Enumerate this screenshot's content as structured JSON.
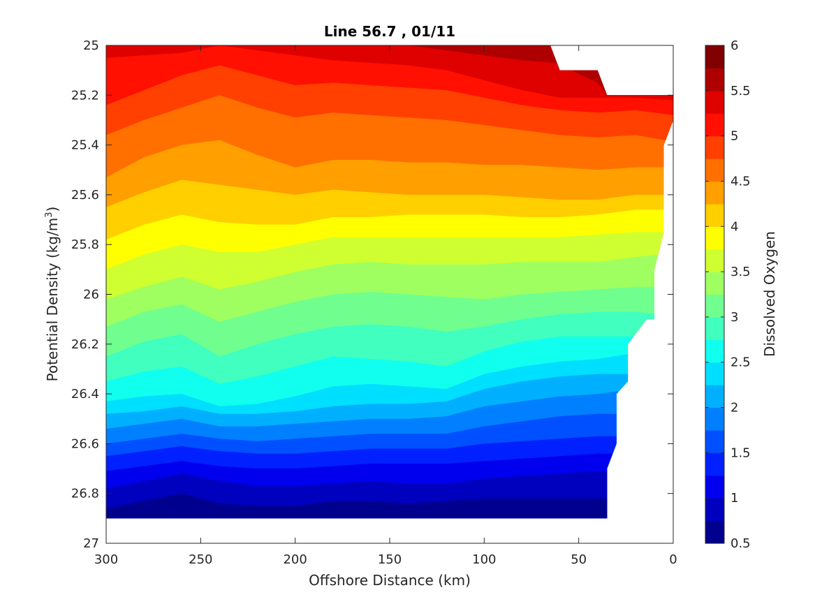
{
  "chart_data": {
    "type": "contour",
    "title": "Line 56.7 , 01/11",
    "xlabel": "Offshore Distance (km)",
    "ylabel": "Potential Density (kg/m",
    "ylabel_sup": "3",
    "ylabel_tail": ")",
    "colorbar_label": "Dissolved Oxygen",
    "xlim": [
      300,
      0
    ],
    "ylim": [
      25,
      27
    ],
    "y_reversed": true,
    "x_reversed": true,
    "x_ticks": [
      300,
      250,
      200,
      150,
      100,
      50,
      0
    ],
    "x_tick_labels": [
      "300",
      "250",
      "200",
      "150",
      "100",
      "50",
      "0"
    ],
    "y_ticks": [
      25,
      25.2,
      25.4,
      25.6,
      25.8,
      26,
      26.2,
      26.4,
      26.6,
      26.8,
      27
    ],
    "y_tick_labels": [
      "25",
      "25.2",
      "25.4",
      "25.6",
      "25.8",
      "26",
      "26.2",
      "26.4",
      "26.6",
      "26.8",
      "27"
    ],
    "colorbar": {
      "range": [
        0.5,
        6
      ],
      "ticks": [
        0.5,
        1,
        1.5,
        2,
        2.5,
        3,
        3.5,
        4,
        4.5,
        5,
        5.5,
        6
      ],
      "tick_labels": [
        "0.5",
        "1",
        "1.5",
        "2",
        "2.5",
        "3",
        "3.5",
        "4",
        "4.5",
        "5",
        "5.5",
        "6"
      ],
      "levels": [
        0.5,
        0.75,
        1,
        1.25,
        1.5,
        1.75,
        2,
        2.25,
        2.5,
        2.75,
        3,
        3.25,
        3.5,
        3.75,
        4,
        4.25,
        4.5,
        4.75,
        5,
        5.25,
        5.5,
        5.75,
        6
      ],
      "colormap": "jet",
      "colors": [
        "#00008f",
        "#0000bf",
        "#0000ef",
        "#0020ff",
        "#0050ff",
        "#0080ff",
        "#00b0ff",
        "#00dfff",
        "#10ffef",
        "#40ffbf",
        "#70ff8f",
        "#9fff60",
        "#cfff30",
        "#ffff00",
        "#ffcf00",
        "#ff9f00",
        "#ff7000",
        "#ff4000",
        "#ff1000",
        "#df0000",
        "#af0000",
        "#800000"
      ]
    },
    "data_extent": {
      "density_bottom": 26.9,
      "boundary_km_by_density": [
        [
          25.0,
          65
        ],
        [
          25.1,
          60
        ],
        [
          25.1,
          40
        ],
        [
          25.2,
          35
        ],
        [
          25.2,
          0
        ],
        [
          25.3,
          0
        ],
        [
          25.4,
          5
        ],
        [
          25.75,
          5
        ],
        [
          25.9,
          10
        ],
        [
          26.1,
          10
        ],
        [
          26.1,
          14
        ],
        [
          26.2,
          24
        ],
        [
          26.35,
          24
        ],
        [
          26.4,
          30
        ],
        [
          26.6,
          30
        ],
        [
          26.7,
          35
        ],
        [
          26.9,
          35
        ]
      ]
    },
    "contours": [
      {
        "level": 5.75,
        "x": [
          300,
          280,
          240,
          200,
          150,
          100,
          70,
          63
        ],
        "y": [
          25.0,
          24.99,
          24.99,
          24.99,
          24.99,
          24.99,
          24.99,
          25.0
        ]
      },
      {
        "level": 5.5,
        "x": [
          300,
          280,
          240,
          200,
          160,
          140,
          120,
          100,
          80,
          62,
          40,
          35
        ],
        "y": [
          24.96,
          24.96,
          24.96,
          24.97,
          24.99,
          25.0,
          25.02,
          25.04,
          25.06,
          25.07,
          25.15,
          25.2
        ]
      },
      {
        "level": 5.25,
        "x": [
          300,
          280,
          260,
          240,
          220,
          200,
          180,
          160,
          140,
          120,
          100,
          80,
          60,
          40,
          20,
          0
        ],
        "y": [
          25.05,
          25.04,
          25.03,
          25.0,
          25.02,
          25.04,
          25.06,
          25.07,
          25.08,
          25.1,
          25.14,
          25.18,
          25.21,
          25.21,
          25.21,
          25.22
        ]
      },
      {
        "level": 5.0,
        "x": [
          300,
          280,
          260,
          240,
          220,
          200,
          180,
          160,
          140,
          120,
          100,
          80,
          60,
          40,
          20,
          0
        ],
        "y": [
          25.24,
          25.18,
          25.12,
          25.08,
          25.12,
          25.16,
          25.15,
          25.16,
          25.17,
          25.18,
          25.21,
          25.24,
          25.26,
          25.27,
          25.26,
          25.28
        ]
      },
      {
        "level": 4.75,
        "x": [
          300,
          280,
          260,
          240,
          220,
          200,
          180,
          160,
          140,
          120,
          100,
          80,
          60,
          40,
          20,
          5
        ],
        "y": [
          25.36,
          25.3,
          25.25,
          25.2,
          25.25,
          25.29,
          25.27,
          25.28,
          25.29,
          25.3,
          25.32,
          25.34,
          25.36,
          25.37,
          25.36,
          25.38
        ]
      },
      {
        "level": 4.5,
        "x": [
          300,
          280,
          260,
          240,
          220,
          200,
          180,
          160,
          140,
          120,
          100,
          80,
          60,
          40,
          20,
          5
        ],
        "y": [
          25.53,
          25.45,
          25.4,
          25.38,
          25.44,
          25.49,
          25.46,
          25.46,
          25.47,
          25.47,
          25.48,
          25.48,
          25.49,
          25.5,
          25.49,
          25.49
        ]
      },
      {
        "level": 4.25,
        "x": [
          300,
          280,
          260,
          240,
          220,
          200,
          180,
          160,
          140,
          120,
          100,
          80,
          60,
          40,
          20,
          5
        ],
        "y": [
          25.65,
          25.59,
          25.54,
          25.56,
          25.58,
          25.6,
          25.58,
          25.59,
          25.6,
          25.6,
          25.6,
          25.61,
          25.62,
          25.62,
          25.6,
          25.6
        ]
      },
      {
        "level": 4.0,
        "x": [
          300,
          280,
          260,
          240,
          220,
          200,
          180,
          160,
          140,
          120,
          100,
          80,
          60,
          40,
          20,
          5
        ],
        "y": [
          25.78,
          25.72,
          25.68,
          25.71,
          25.72,
          25.72,
          25.69,
          25.69,
          25.68,
          25.68,
          25.68,
          25.69,
          25.69,
          25.68,
          25.66,
          25.66
        ]
      },
      {
        "level": 3.75,
        "x": [
          300,
          280,
          260,
          240,
          220,
          200,
          180,
          160,
          140,
          120,
          100,
          80,
          60,
          40,
          20,
          5
        ],
        "y": [
          25.9,
          25.84,
          25.8,
          25.83,
          25.83,
          25.8,
          25.77,
          25.77,
          25.77,
          25.77,
          25.77,
          25.77,
          25.77,
          25.76,
          25.75,
          25.75
        ]
      },
      {
        "level": 3.5,
        "x": [
          300,
          280,
          260,
          240,
          220,
          200,
          180,
          160,
          140,
          120,
          100,
          80,
          60,
          40,
          20,
          7
        ],
        "y": [
          26.02,
          25.97,
          25.93,
          25.98,
          25.95,
          25.91,
          25.88,
          25.87,
          25.88,
          25.88,
          25.88,
          25.87,
          25.87,
          25.87,
          25.85,
          25.84
        ]
      },
      {
        "level": 3.25,
        "x": [
          300,
          280,
          260,
          240,
          220,
          200,
          180,
          160,
          140,
          120,
          100,
          80,
          60,
          40,
          20,
          10
        ],
        "y": [
          26.13,
          26.07,
          26.04,
          26.11,
          26.07,
          26.03,
          26.0,
          25.99,
          26.0,
          26.01,
          26.02,
          26.0,
          25.99,
          25.98,
          25.97,
          25.97
        ]
      },
      {
        "level": 3.0,
        "x": [
          300,
          280,
          260,
          240,
          220,
          200,
          180,
          160,
          140,
          120,
          100,
          80,
          60,
          40,
          20,
          10
        ],
        "y": [
          26.25,
          26.19,
          26.16,
          26.25,
          26.2,
          26.16,
          26.13,
          26.12,
          26.13,
          26.15,
          26.13,
          26.1,
          26.08,
          26.07,
          26.07,
          26.08
        ]
      },
      {
        "level": 2.75,
        "x": [
          300,
          280,
          260,
          240,
          220,
          200,
          180,
          160,
          140,
          120,
          100,
          80,
          60,
          40,
          22
        ],
        "y": [
          26.35,
          26.31,
          26.29,
          26.36,
          26.33,
          26.29,
          26.25,
          26.26,
          26.27,
          26.29,
          26.23,
          26.19,
          26.17,
          26.17,
          26.17
        ]
      },
      {
        "level": 2.5,
        "x": [
          300,
          280,
          260,
          240,
          220,
          200,
          180,
          160,
          140,
          120,
          100,
          80,
          60,
          40,
          24
        ],
        "y": [
          26.43,
          26.41,
          26.4,
          26.45,
          26.44,
          26.41,
          26.37,
          26.36,
          26.37,
          26.38,
          26.32,
          26.29,
          26.27,
          26.26,
          26.24
        ]
      },
      {
        "level": 2.25,
        "x": [
          300,
          280,
          260,
          240,
          220,
          200,
          180,
          160,
          140,
          120,
          100,
          80,
          60,
          40,
          26
        ],
        "y": [
          26.48,
          26.47,
          26.45,
          26.48,
          26.48,
          26.47,
          26.45,
          26.44,
          26.44,
          26.43,
          26.38,
          26.35,
          26.33,
          26.32,
          26.32
        ]
      },
      {
        "level": 2.0,
        "x": [
          300,
          280,
          260,
          240,
          220,
          200,
          180,
          160,
          140,
          120,
          100,
          80,
          60,
          40,
          30
        ],
        "y": [
          26.54,
          26.52,
          26.5,
          26.53,
          26.53,
          26.52,
          26.51,
          26.5,
          26.5,
          26.49,
          26.45,
          26.43,
          26.41,
          26.4,
          26.39
        ]
      },
      {
        "level": 1.75,
        "x": [
          300,
          280,
          260,
          240,
          220,
          200,
          180,
          160,
          140,
          120,
          100,
          80,
          60,
          40,
          30
        ],
        "y": [
          26.6,
          26.58,
          26.56,
          26.58,
          26.59,
          26.58,
          26.57,
          26.56,
          26.56,
          26.56,
          26.53,
          26.51,
          26.49,
          26.48,
          26.48
        ]
      },
      {
        "level": 1.5,
        "x": [
          300,
          280,
          260,
          240,
          220,
          200,
          180,
          160,
          140,
          120,
          100,
          80,
          60,
          40,
          30
        ],
        "y": [
          26.65,
          26.63,
          26.61,
          26.63,
          26.64,
          26.64,
          26.63,
          26.62,
          26.62,
          26.62,
          26.6,
          26.59,
          26.58,
          26.57,
          26.57
        ]
      },
      {
        "level": 1.25,
        "x": [
          300,
          280,
          260,
          240,
          220,
          200,
          180,
          160,
          140,
          120,
          100,
          80,
          60,
          40,
          33
        ],
        "y": [
          26.71,
          26.69,
          26.67,
          26.69,
          26.7,
          26.7,
          26.69,
          26.68,
          26.68,
          26.68,
          26.67,
          26.66,
          26.65,
          26.64,
          26.64
        ]
      },
      {
        "level": 1.0,
        "x": [
          300,
          280,
          260,
          240,
          220,
          200,
          180,
          160,
          140,
          120,
          100,
          80,
          60,
          40,
          35
        ],
        "y": [
          26.78,
          26.75,
          26.72,
          26.75,
          26.77,
          26.77,
          26.76,
          26.75,
          26.76,
          26.76,
          26.74,
          26.73,
          26.72,
          26.71,
          26.71
        ]
      },
      {
        "level": 0.75,
        "x": [
          300,
          280,
          260,
          240,
          220,
          200,
          180,
          160,
          140,
          120,
          100,
          80,
          60,
          40,
          35
        ],
        "y": [
          26.86,
          26.83,
          26.8,
          26.84,
          26.85,
          26.85,
          26.83,
          26.83,
          26.84,
          26.83,
          26.82,
          26.82,
          26.82,
          26.82,
          26.82
        ]
      }
    ]
  }
}
